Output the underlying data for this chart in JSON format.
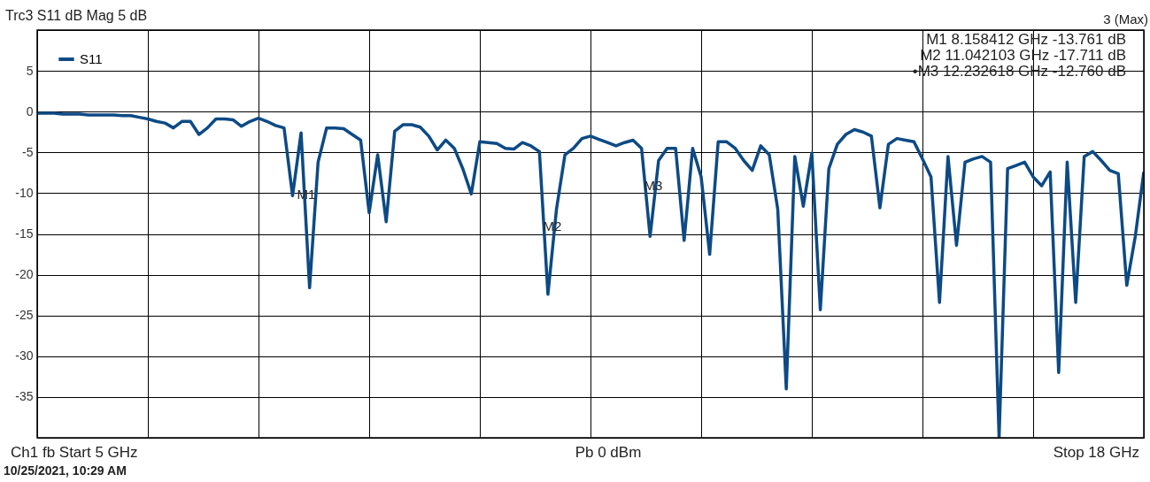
{
  "chart_data": {
    "type": "line",
    "title": "Trc3 S11 dB Mag 5 dB",
    "annotations": [
      "3 (Max)",
      "M1     8.158412 GHz  -13.761 dB",
      "M2   11.042103 GHz  -17.711 dB",
      "•M3   12.232618 GHz  -12.760 dB",
      "Ch1  fb  Start  5 GHz",
      "Pb   0 dBm",
      "Stop   18 GHz",
      "10/25/2021, 10:29 AM",
      "M1",
      "M2",
      "M3"
    ],
    "categories": [
      null,
      null,
      null,
      null,
      null,
      null,
      null,
      null,
      null,
      null,
      null,
      null,
      null,
      null,
      null,
      null,
      null,
      null,
      null,
      null,
      null,
      null,
      null,
      null,
      null,
      null,
      null,
      null,
      null,
      null,
      null,
      null,
      null,
      null,
      null,
      null,
      null,
      null,
      null,
      null,
      null,
      null,
      null,
      null,
      null,
      null,
      null,
      null,
      null,
      null,
      null,
      null,
      null,
      null,
      null,
      null,
      null,
      null,
      null,
      null,
      null,
      null,
      null,
      null,
      null,
      null,
      null,
      null,
      null,
      null,
      null,
      null,
      null,
      null,
      null,
      null,
      null,
      null,
      null,
      null,
      null,
      null,
      null,
      null,
      null,
      null,
      null,
      null,
      null,
      null,
      null,
      null,
      null,
      null,
      null,
      null,
      null,
      null,
      null,
      null,
      null,
      null,
      null,
      null,
      null,
      null,
      null,
      null,
      null,
      null,
      null,
      null,
      null,
      null,
      null,
      null,
      null,
      null,
      null,
      null,
      null,
      null,
      null,
      null,
      null,
      null,
      null,
      null,
      null,
      null,
      null
    ],
    "series": [
      {
        "name": "S11",
        "color": "#0d4a85",
        "values": [
          -0.2,
          -0.2,
          -0.2,
          -0.3,
          -0.3,
          -0.3,
          -0.4,
          -0.4,
          -0.4,
          -0.4,
          -0.5,
          -0.5,
          -0.7,
          -0.9,
          -1.2,
          -1.4,
          -2.0,
          -1.2,
          -1.2,
          -2.8,
          -2.0,
          -0.9,
          -0.9,
          -1.0,
          -1.8,
          -1.2,
          -0.8,
          -1.2,
          -1.7,
          -2.0,
          -10.3,
          -2.6,
          -21.6,
          -6.2,
          -2.0,
          -2.0,
          -2.1,
          -2.8,
          -3.5,
          -12.4,
          -5.3,
          -13.5,
          -2.4,
          -1.6,
          -1.6,
          -1.9,
          -3.0,
          -4.7,
          -3.5,
          -4.5,
          -7.0,
          -10.1,
          -3.7,
          -3.8,
          -3.9,
          -4.5,
          -4.6,
          -3.8,
          -4.2,
          -4.9,
          -22.4,
          -12.0,
          -5.3,
          -4.5,
          -3.3,
          -3.0,
          -3.4,
          -3.8,
          -4.2,
          -3.8,
          -3.5,
          -4.5,
          -15.3,
          -6.0,
          -4.5,
          -4.5,
          -15.8,
          -4.5,
          -8.0,
          -17.5,
          -3.7,
          -3.7,
          -4.5,
          -6.0,
          -7.2,
          -4.2,
          -5.3,
          -12.0,
          -34.0,
          -5.5,
          -11.6,
          -5.1,
          -24.3,
          -7.0,
          -4.0,
          -2.8,
          -2.2,
          -2.5,
          -3.0,
          -11.8,
          -4.0,
          -3.3,
          -3.5,
          -3.7,
          -5.8,
          -8.0,
          -23.4,
          -5.5,
          -16.4,
          -6.2,
          -5.8,
          -5.5,
          -6.2,
          -40.0,
          -7.0,
          -6.6,
          -6.2,
          -8.0,
          -9.1,
          -7.4,
          -32.0,
          -6.2,
          -23.4,
          -5.5,
          -4.9,
          -6.0,
          -7.2,
          -7.6,
          -21.3,
          -15.3,
          -7.4
        ]
      }
    ],
    "ylim": [
      -40,
      10
    ],
    "yticks": [
      {
        "value": 10,
        "label": null
      },
      5,
      0,
      -5,
      -10,
      -15,
      -20,
      -25,
      -30,
      -35,
      {
        "value": -40,
        "label": null
      }
    ],
    "tick_labels": "y",
    "grid": true,
    "legend": "top left",
    "marker": "none",
    "line_style": "solid"
  }
}
